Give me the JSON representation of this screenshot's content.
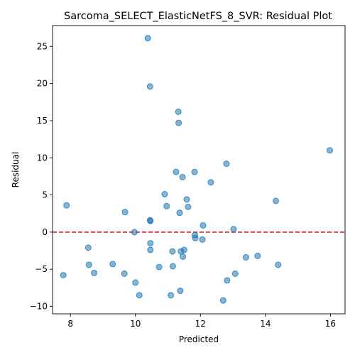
{
  "chart_data": {
    "type": "scatter",
    "title": "Sarcoma_SELECT_ElasticNetFS_8_SVR: Residual Plot",
    "xlabel": "Predicted",
    "ylabel": "Residual",
    "xlim": [
      7.45,
      16.45
    ],
    "ylim": [
      -11.0,
      27.8
    ],
    "xticks": [
      8,
      10,
      12,
      14,
      16
    ],
    "yticks": [
      -10,
      -5,
      0,
      5,
      10,
      15,
      20,
      25
    ],
    "grid": false,
    "reference_line": {
      "y": 0,
      "color": "#d62728",
      "style": "dashed"
    },
    "point_color": "#1f77b4",
    "points": [
      [
        10.38,
        26.1
      ],
      [
        10.45,
        19.6
      ],
      [
        11.32,
        16.2
      ],
      [
        11.33,
        14.7
      ],
      [
        15.98,
        11.0
      ],
      [
        12.8,
        9.2
      ],
      [
        11.25,
        8.1
      ],
      [
        11.82,
        8.1
      ],
      [
        11.45,
        7.4
      ],
      [
        12.32,
        6.7
      ],
      [
        10.9,
        5.1
      ],
      [
        11.58,
        4.4
      ],
      [
        14.32,
        4.2
      ],
      [
        7.88,
        3.6
      ],
      [
        10.96,
        3.5
      ],
      [
        11.62,
        3.4
      ],
      [
        9.68,
        2.7
      ],
      [
        11.36,
        2.6
      ],
      [
        10.45,
        1.6
      ],
      [
        10.46,
        1.5
      ],
      [
        12.08,
        0.9
      ],
      [
        13.02,
        0.4
      ],
      [
        9.97,
        0.0
      ],
      [
        11.83,
        -0.4
      ],
      [
        11.84,
        -0.8
      ],
      [
        12.06,
        -1.0
      ],
      [
        10.46,
        -1.5
      ],
      [
        8.55,
        -2.1
      ],
      [
        10.46,
        -2.4
      ],
      [
        11.5,
        -2.4
      ],
      [
        11.14,
        -2.6
      ],
      [
        11.4,
        -2.6
      ],
      [
        11.46,
        -3.3
      ],
      [
        13.4,
        -3.4
      ],
      [
        13.76,
        -3.2
      ],
      [
        8.57,
        -4.4
      ],
      [
        9.3,
        -4.3
      ],
      [
        14.39,
        -4.4
      ],
      [
        10.73,
        -4.7
      ],
      [
        11.15,
        -4.6
      ],
      [
        8.73,
        -5.5
      ],
      [
        9.66,
        -5.6
      ],
      [
        13.07,
        -5.6
      ],
      [
        7.78,
        -5.8
      ],
      [
        12.82,
        -6.5
      ],
      [
        10.0,
        -6.8
      ],
      [
        10.12,
        -8.5
      ],
      [
        11.09,
        -8.5
      ],
      [
        11.38,
        -7.9
      ],
      [
        12.7,
        -9.2
      ]
    ]
  }
}
